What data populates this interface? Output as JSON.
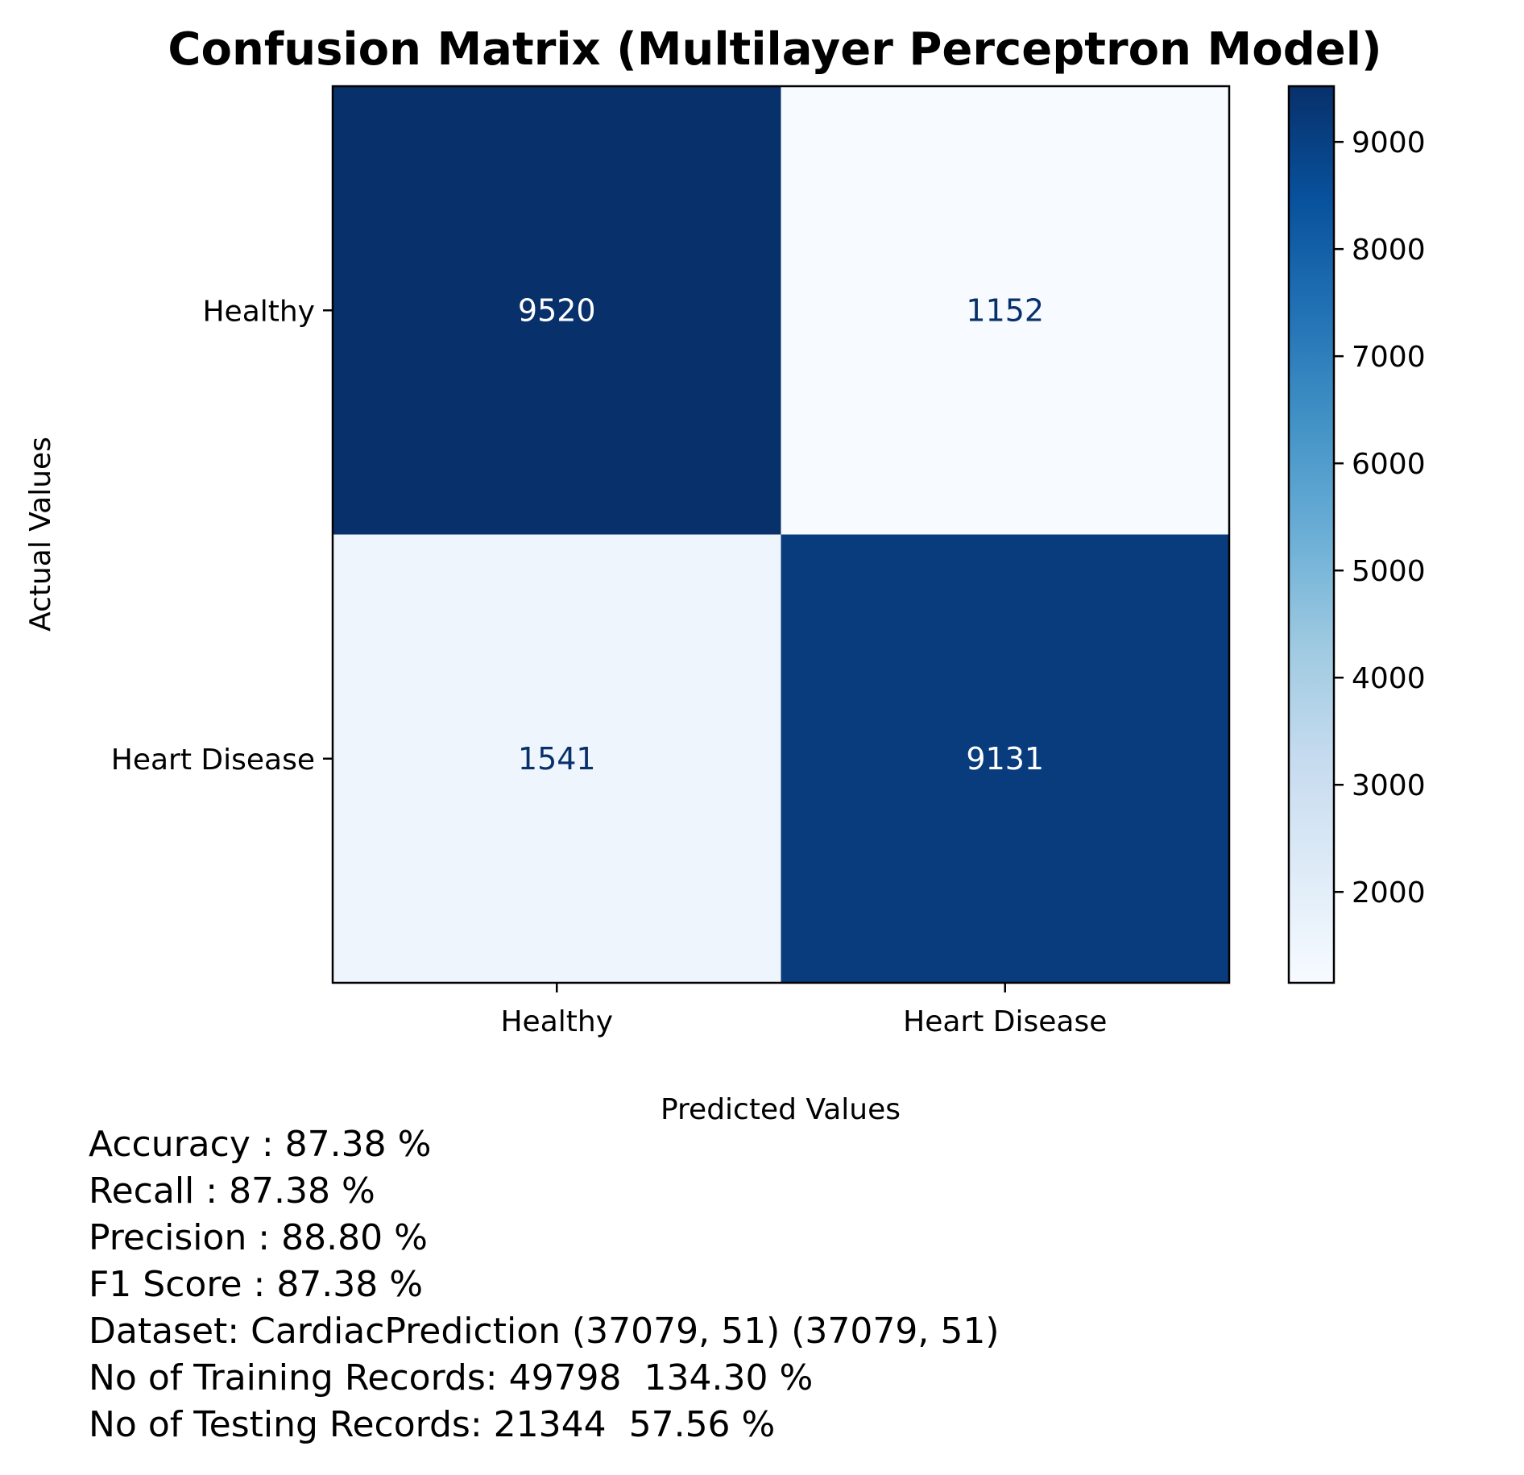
{
  "chart_data": {
    "type": "heatmap",
    "title": "Confusion Matrix (Multilayer Perceptron Model)",
    "xlabel": "Predicted Values",
    "ylabel": "Actual Values",
    "x_categories": [
      "Healthy",
      "Heart Disease"
    ],
    "y_categories": [
      "Healthy",
      "Heart Disease"
    ],
    "values": [
      [
        9520,
        1152
      ],
      [
        1541,
        9131
      ]
    ],
    "colormap": "Blues",
    "colorbar": {
      "range": [
        1152,
        9520
      ],
      "ticks": [
        2000,
        3000,
        4000,
        5000,
        6000,
        7000,
        8000,
        9000
      ]
    },
    "grid": false
  },
  "metrics": [
    "Accuracy : 87.38 %",
    "Recall : 87.38 %",
    "Precision : 88.80 %",
    "F1 Score : 87.38 %",
    "Dataset: CardiacPrediction (37079, 51) (37079, 51)",
    "No of Training Records: 49798  134.30 %",
    "No of Testing Records: 21344  57.56 %"
  ]
}
